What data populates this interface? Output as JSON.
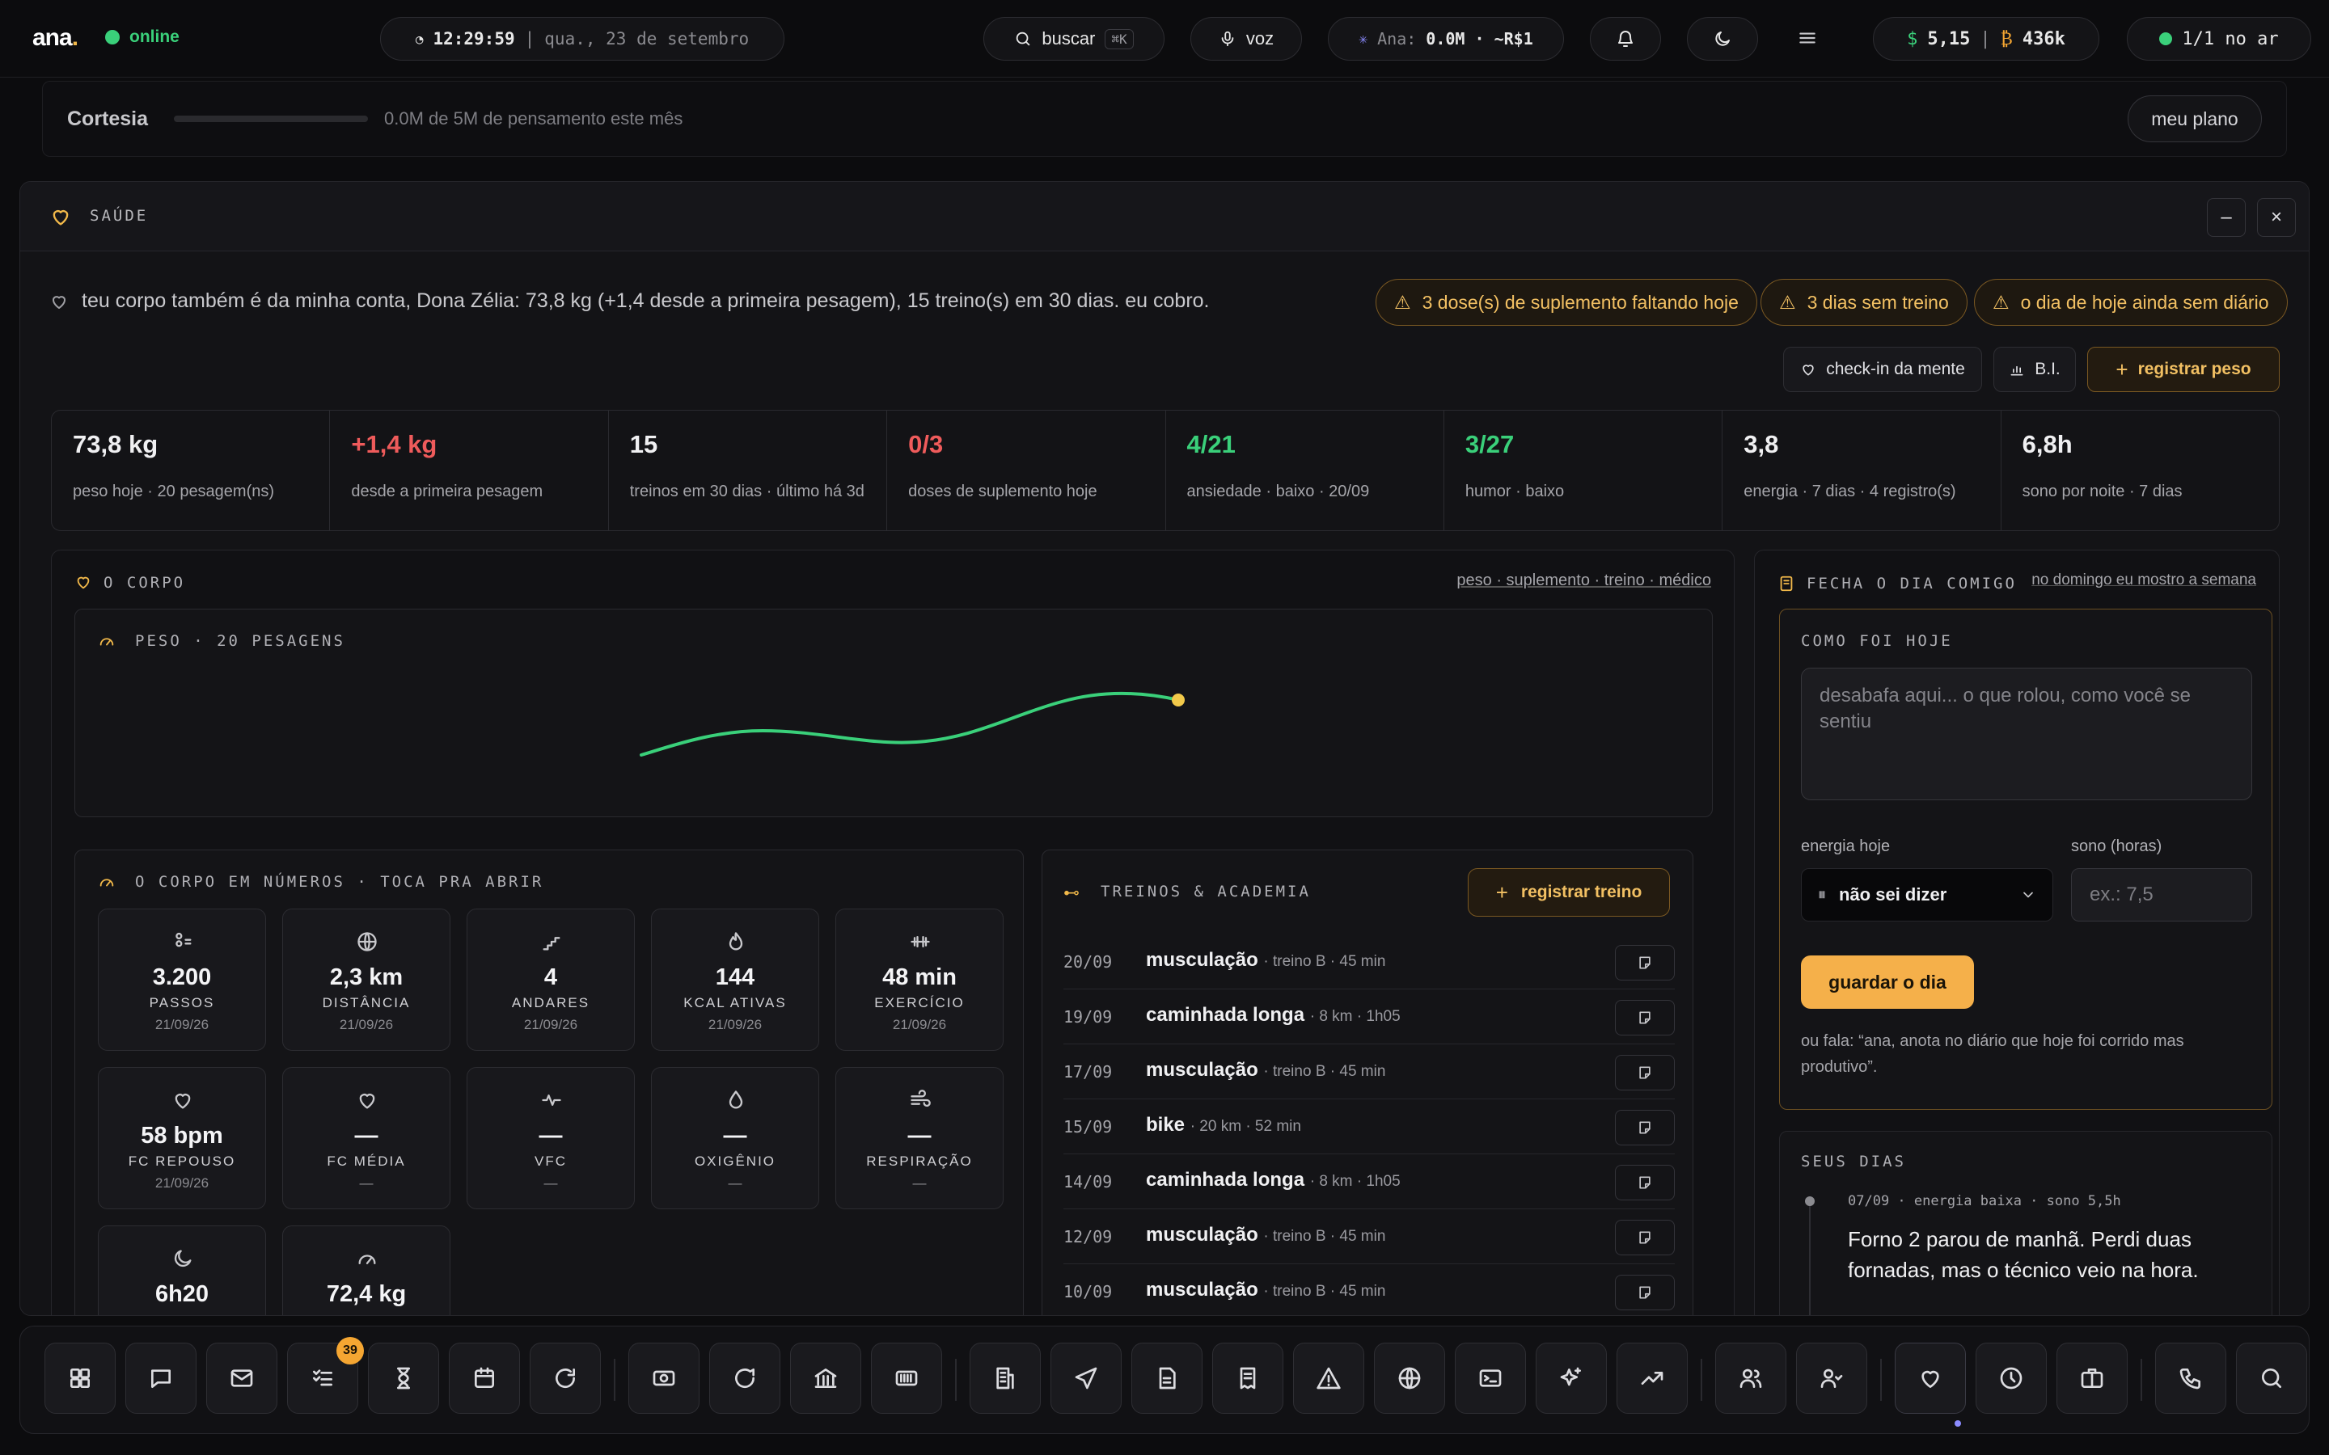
{
  "app": {
    "logo": "ana",
    "logo_dot": ".",
    "status": "online"
  },
  "topbar": {
    "time": "12:29:59",
    "date": "qua., 23 de setembro",
    "search_label": "buscar",
    "search_shortcut": "⌘K",
    "voice_label": "voz",
    "ana_label": "Ana:",
    "ana_usage": "0.0M · ~R$1",
    "dollar_value": "5,15",
    "bitcoin_value": "436k",
    "on_air": "1/1 no ar"
  },
  "plan": {
    "name": "Cortesia",
    "progress": 0.0,
    "usage_text": "0.0M de 5M de pensamento este mês",
    "button": "meu plano"
  },
  "panel": {
    "title": "SAÚDE",
    "summary": "teu corpo também é da minha conta, Dona Zélia: 73,8 kg (+1,4 desde a primeira pesagem), 15 treino(s) em 30 dias. eu cobro.",
    "alerts": [
      "3 dose(s) de suplemento faltando hoje",
      "3 dias sem treino",
      "o dia de hoje ainda sem diário"
    ],
    "actions": {
      "mind": "check-in da mente",
      "bi": "B.I.",
      "weight": "registrar peso"
    }
  },
  "metrics": [
    {
      "value": "73,8 kg",
      "label": "peso hoje · 20 pesagem(ns)",
      "tone": ""
    },
    {
      "value": "+1,4 kg",
      "label": "desde a primeira pesagem",
      "tone": "red"
    },
    {
      "value": "15",
      "label": "treinos em 30 dias · último há 3d",
      "tone": ""
    },
    {
      "value": "0/3",
      "label": "doses de suplemento hoje",
      "tone": "red"
    },
    {
      "value": "4/21",
      "label": "ansiedade · baixo · 20/09",
      "tone": "green"
    },
    {
      "value": "3/27",
      "label": "humor · baixo",
      "tone": "green"
    },
    {
      "value": "3,8",
      "label": "energia · 7 dias · 4 registro(s)",
      "tone": ""
    },
    {
      "value": "6,8h",
      "label": "sono por noite · 7 dias",
      "tone": ""
    }
  ],
  "body": {
    "title": "O CORPO",
    "links": "peso · suplemento · treino · médico",
    "weight_title": "PESO · 20 PESAGENS",
    "weight_line_color": "#3ad07a",
    "weight_last_color": "#f2c94a",
    "numbers_title": "O CORPO EM NÚMEROS · TOCA PRA ABRIR",
    "tiles": [
      {
        "icon": "footprints-icon",
        "value": "3.200",
        "label": "PASSOS",
        "date": "21/09/26"
      },
      {
        "icon": "globe-icon",
        "value": "2,3 km",
        "label": "DISTÂNCIA",
        "date": "21/09/26"
      },
      {
        "icon": "stairs-icon",
        "value": "4",
        "label": "ANDARES",
        "date": "21/09/26"
      },
      {
        "icon": "flame-icon",
        "value": "144",
        "label": "KCAL ATIVAS",
        "date": "21/09/26"
      },
      {
        "icon": "dumbbell-icon",
        "value": "48 min",
        "label": "EXERCÍCIO",
        "date": "21/09/26"
      },
      {
        "icon": "heart-icon",
        "value": "58 bpm",
        "label": "FC REPOUSO",
        "date": "21/09/26"
      },
      {
        "icon": "heart-icon",
        "value": "—",
        "label": "FC MÉDIA",
        "date": "—"
      },
      {
        "icon": "pulse-icon",
        "value": "—",
        "label": "VFC",
        "date": "—"
      },
      {
        "icon": "droplet-icon",
        "value": "—",
        "label": "OXIGÊNIO",
        "date": "—"
      },
      {
        "icon": "wind-icon",
        "value": "—",
        "label": "RESPIRAÇÃO",
        "date": "—"
      },
      {
        "icon": "moon-icon",
        "value": "6h20",
        "label": "",
        "date": ""
      },
      {
        "icon": "gauge-icon",
        "value": "72,4 kg",
        "label": "",
        "date": ""
      }
    ],
    "training_title": "TREINOS & ACADEMIA",
    "training_button": "registrar treino",
    "trainings": [
      {
        "date": "20/09",
        "name": "musculação",
        "meta": "· treino B · 45 min"
      },
      {
        "date": "19/09",
        "name": "caminhada longa",
        "meta": "· 8 km · 1h05"
      },
      {
        "date": "17/09",
        "name": "musculação",
        "meta": "· treino B · 45 min"
      },
      {
        "date": "15/09",
        "name": "bike",
        "meta": "· 20 km · 52 min"
      },
      {
        "date": "14/09",
        "name": "caminhada longa",
        "meta": "· 8 km · 1h05"
      },
      {
        "date": "12/09",
        "name": "musculação",
        "meta": "· treino B · 45 min"
      },
      {
        "date": "10/09",
        "name": "musculação",
        "meta": "· treino B · 45 min"
      }
    ]
  },
  "day": {
    "title": "FECHA O DIA COMIGO",
    "link": "no domingo eu mostro a semana",
    "how_title": "COMO FOI HOJE",
    "textarea_placeholder": "desabafa aqui... o que rolou, como você se sentiu",
    "energy_label": "energia hoje",
    "energy_value": "não sei dizer",
    "sleep_label": "sono (horas)",
    "sleep_placeholder": "ex.: 7,5",
    "save_button": "guardar o dia",
    "hint": "ou fala: “ana, anota no diário que hoje foi corrido mas produtivo”.",
    "days_title": "SEUS DIAS",
    "entry_meta": "07/09 · energia baixa · sono 5,5h",
    "entry_text": "Forno 2 parou de manhã. Perdi duas fornadas, mas o técnico veio na hora."
  },
  "dock": {
    "tasks_badge": "39"
  }
}
